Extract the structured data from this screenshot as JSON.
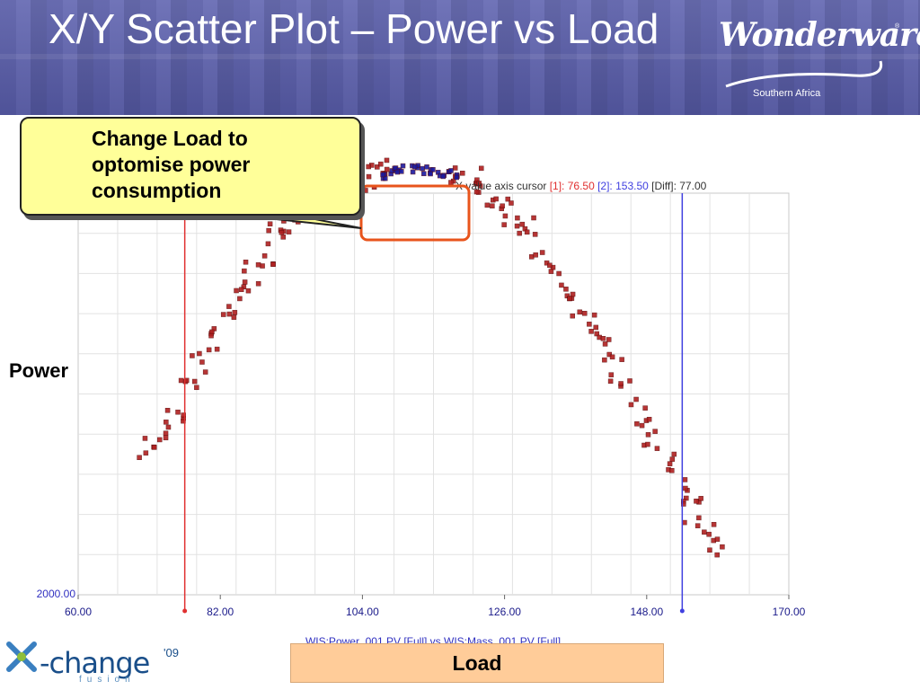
{
  "slide": {
    "title": "X/Y Scatter Plot – Power vs Load",
    "callout": "Change Load to optomise power consumption",
    "y_axis_label": "Power",
    "x_axis_label": "Load"
  },
  "logos": {
    "brand": "Wonderware",
    "brand_sub": "Southern Africa",
    "brand_reg": "®",
    "event": "-change",
    "event_year": "'09",
    "event_sub": "fusion"
  },
  "cursor_bar": {
    "label": "X value axis cursor",
    "c1_label": "[1]: 76.50",
    "c2_label": "[2]: 153.50",
    "diff_label": "[Diff]: 77.00"
  },
  "chart_data": {
    "type": "scatter",
    "title": "",
    "xlabel": "WIS:Power_001.PV [Full]  vs  WIS:Mass_001.PV [Full]",
    "ylabel": "",
    "xlim": [
      60,
      170
    ],
    "x_ticks": [
      "60.00",
      "82.00",
      "104.00",
      "126.00",
      "148.00",
      "170.00"
    ],
    "y_min_label": "2000.00",
    "cursors": [
      76.5,
      153.5
    ],
    "cursor_colors": [
      "#e03030",
      "#4040e0"
    ],
    "series": [
      {
        "color": "#b02020",
        "x": [
          71,
          73,
          75,
          77,
          79,
          81,
          83,
          85,
          87,
          89,
          91,
          93,
          95,
          97,
          99,
          101,
          103,
          105,
          107,
          119,
          121,
          123,
          125,
          127,
          129,
          131,
          133,
          135,
          137,
          139,
          141,
          143,
          145,
          147,
          149,
          151,
          153,
          155,
          157,
          159
        ],
        "y": [
          0.37,
          0.4,
          0.46,
          0.52,
          0.58,
          0.64,
          0.7,
          0.75,
          0.8,
          0.85,
          0.89,
          0.93,
          0.96,
          0.99,
          1.01,
          1.03,
          1.04,
          1.045,
          1.05,
          1.045,
          1.03,
          1.0,
          0.98,
          0.95,
          0.91,
          0.87,
          0.82,
          0.77,
          0.72,
          0.67,
          0.62,
          0.56,
          0.5,
          0.44,
          0.38,
          0.32,
          0.26,
          0.21,
          0.16,
          0.12
        ]
      },
      {
        "color": "#1a1aa0",
        "x": [
          107,
          108,
          109,
          110,
          111,
          112,
          113,
          114,
          115,
          116,
          117,
          118
        ],
        "y": [
          1.045,
          1.05,
          1.055,
          1.055,
          1.06,
          1.06,
          1.06,
          1.055,
          1.055,
          1.05,
          1.05,
          1.045
        ]
      }
    ],
    "annotations": [
      "highlight box around optimal-load cluster (~106–119)"
    ],
    "grid": true,
    "legend": "none"
  },
  "colors": {
    "header_bg": "#5a5ea8",
    "callout_bg": "#ffff99",
    "highlight_box": "#e8541c",
    "load_box": "#ffcc99",
    "axis_text": "#1a1a8a"
  }
}
